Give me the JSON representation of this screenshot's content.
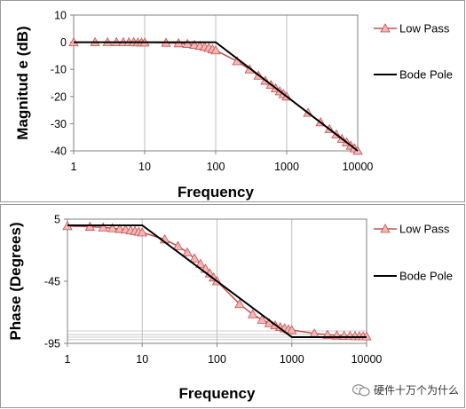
{
  "colors": {
    "low_pass_fill": "#f4b6b6",
    "low_pass_line": "#c0504d",
    "bode_line": "#000000",
    "grid": "#bfbfbf",
    "plot_border": "#808080"
  },
  "chart_data": [
    {
      "type": "line",
      "xscale": "log",
      "xlabel": "Frequency",
      "ylabel": "Magnitud e (dB)",
      "xlim": [
        1,
        10000
      ],
      "ylim": [
        -40,
        10
      ],
      "xticks": [
        "1",
        "10",
        "100",
        "1000",
        "10000"
      ],
      "yticks": [
        "10",
        "0",
        "-10",
        "-20",
        "-30",
        "-40"
      ],
      "grid": "vertical",
      "legend": "right",
      "series": [
        {
          "name": "Low Pass",
          "marker": "triangle",
          "x": [
            1,
            2,
            3,
            4,
            5,
            6,
            7,
            8,
            9,
            10,
            20,
            30,
            40,
            50,
            60,
            70,
            80,
            90,
            100,
            200,
            300,
            400,
            500,
            600,
            700,
            800,
            900,
            1000,
            2000,
            3000,
            4000,
            5000,
            6000,
            7000,
            8000,
            9000,
            10000
          ],
          "y": [
            0,
            0,
            0,
            0,
            0,
            0,
            0,
            -0.1,
            -0.1,
            -0.1,
            -0.2,
            -0.4,
            -0.6,
            -1.0,
            -1.3,
            -1.7,
            -2.1,
            -2.6,
            -3.0,
            -7.0,
            -10.0,
            -12.3,
            -14.2,
            -15.7,
            -17.0,
            -18.1,
            -19.1,
            -20.0,
            -26.0,
            -29.5,
            -32.0,
            -34.0,
            -35.6,
            -36.9,
            -38.1,
            -39.1,
            -40.0
          ]
        },
        {
          "name": "Bode Pole",
          "marker": "none",
          "x": [
            1,
            100,
            10000
          ],
          "y": [
            0,
            0,
            -40
          ]
        }
      ]
    },
    {
      "type": "line",
      "xscale": "log",
      "xlabel": "Frequency",
      "ylabel": "Phase (Degrees)",
      "xlim": [
        1,
        10000
      ],
      "ylim": [
        -95,
        5
      ],
      "xticks": [
        "1",
        "10",
        "100",
        "1000",
        "10000"
      ],
      "yticks": [
        "5",
        "-45",
        "-95"
      ],
      "grid": "both",
      "legend": "right",
      "series": [
        {
          "name": "Low Pass",
          "marker": "triangle",
          "x": [
            1,
            2,
            3,
            4,
            5,
            6,
            7,
            8,
            9,
            10,
            20,
            30,
            40,
            50,
            60,
            70,
            80,
            90,
            100,
            200,
            300,
            400,
            500,
            600,
            700,
            800,
            900,
            1000,
            2000,
            3000,
            4000,
            5000,
            6000,
            7000,
            8000,
            9000,
            10000
          ],
          "y": [
            -0.6,
            -1.1,
            -1.7,
            -2.3,
            -2.9,
            -3.4,
            -4.0,
            -4.6,
            -5.1,
            -5.7,
            -11.3,
            -16.7,
            -21.8,
            -26.6,
            -31.0,
            -35.0,
            -38.7,
            -42.0,
            -45.0,
            -63.4,
            -71.6,
            -76.0,
            -78.7,
            -80.5,
            -81.9,
            -82.9,
            -83.7,
            -84.3,
            -87.1,
            -88.1,
            -88.6,
            -88.9,
            -89.0,
            -89.2,
            -89.3,
            -89.4,
            -89.4
          ]
        },
        {
          "name": "Bode Pole",
          "marker": "none",
          "x": [
            1,
            10,
            1000,
            10000
          ],
          "y": [
            0,
            0,
            -90,
            -90
          ]
        }
      ]
    }
  ],
  "watermark": {
    "text": "硬件十万个为什么"
  }
}
